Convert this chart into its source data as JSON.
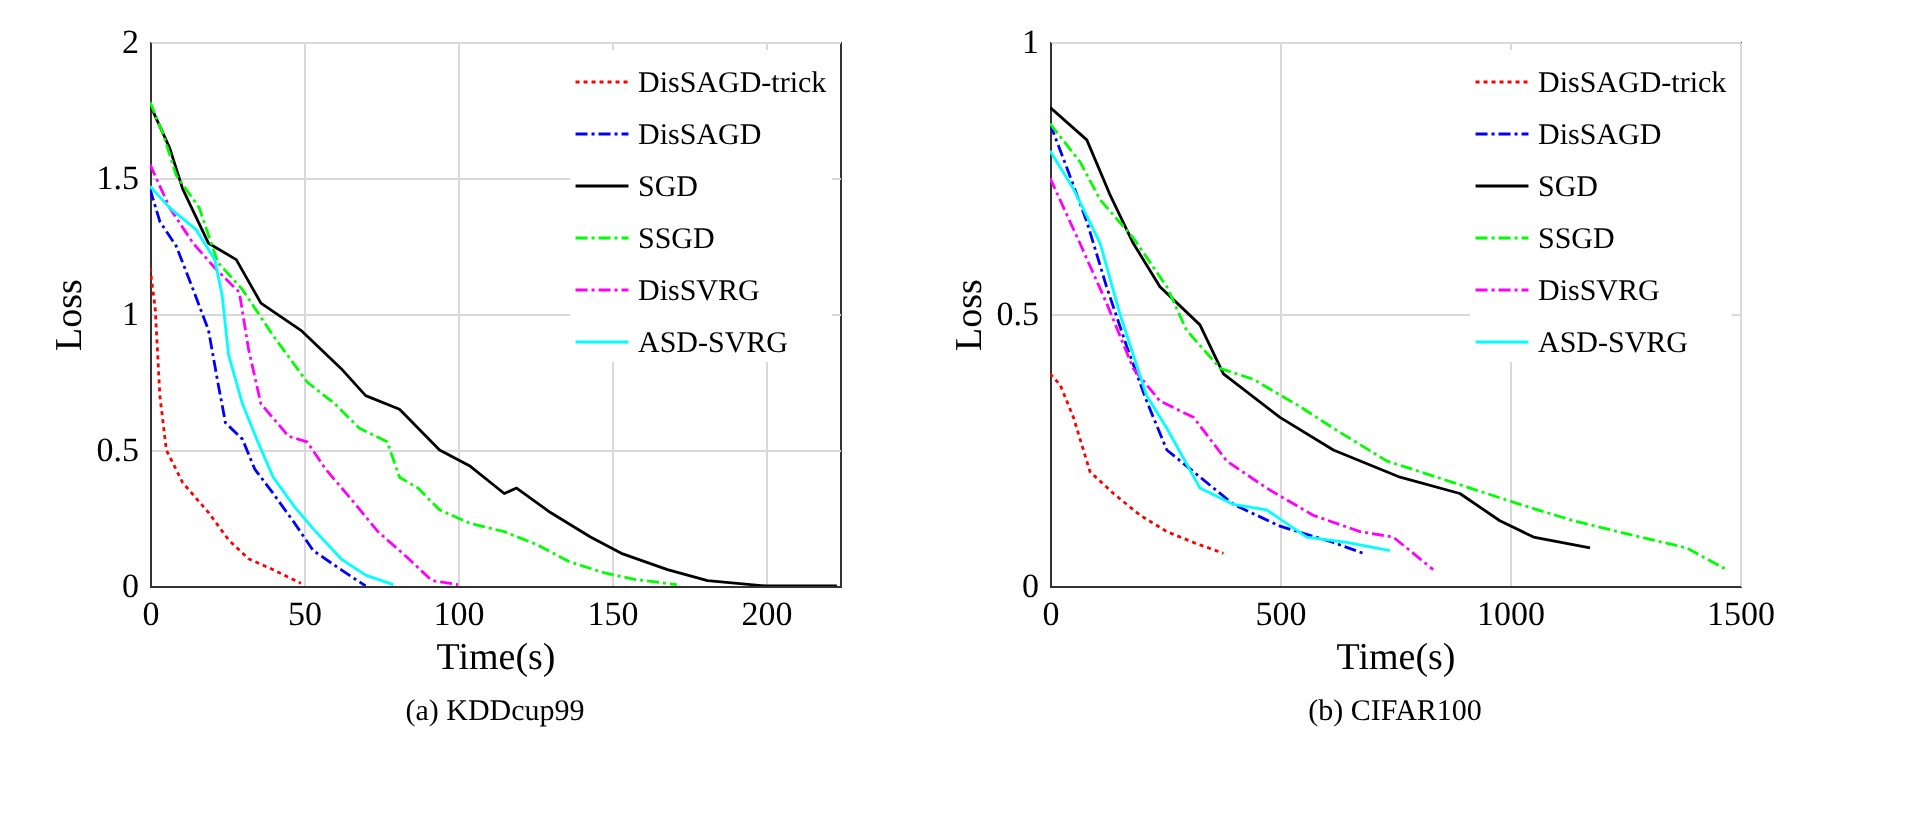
{
  "chart_data": [
    {
      "type": "line",
      "title": "(a) KDDcup99",
      "xlabel": "Time(s)",
      "ylabel": "Loss",
      "xlim": [
        0,
        224
      ],
      "xticks": [
        0,
        50,
        100,
        150,
        200
      ],
      "ylim": [
        0,
        2
      ],
      "yticks": [
        0,
        0.5,
        1,
        1.5,
        2
      ],
      "grid": true,
      "legend": "top right",
      "series": [
        {
          "name": "DisSAGD-trick",
          "color": "#ff0000",
          "line_style": "dotted",
          "x": [
            0,
            1.7,
            3.2,
            5.3,
            10.6,
            19,
            25.5,
            32,
            40,
            49
          ],
          "values": [
            1.17,
            1.02,
            0.7,
            0.5,
            0.38,
            0.27,
            0.17,
            0.1,
            0.06,
            0.01
          ]
        },
        {
          "name": "DisSAGD",
          "color": "#0000ff",
          "line_style": "dashed",
          "x": [
            0,
            3.2,
            8.5,
            14,
            19,
            22,
            24.5,
            30,
            34,
            40,
            47,
            53,
            62,
            70
          ],
          "values": [
            1.46,
            1.34,
            1.25,
            1.09,
            0.94,
            0.75,
            0.6,
            0.54,
            0.43,
            0.34,
            0.23,
            0.13,
            0.06,
            0
          ]
        },
        {
          "name": "SGD",
          "color": "#000000",
          "line_style": "solid",
          "x": [
            0,
            6.4,
            10.6,
            19,
            28,
            36,
            49,
            62,
            70,
            81,
            94,
            104,
            115,
            119,
            130,
            143,
            153,
            168,
            181,
            200,
            223
          ],
          "values": [
            1.77,
            1.61,
            1.46,
            1.26,
            1.2,
            1.04,
            0.94,
            0.8,
            0.7,
            0.65,
            0.5,
            0.44,
            0.34,
            0.36,
            0.27,
            0.18,
            0.12,
            0.06,
            0.02,
            0,
            0
          ]
        },
        {
          "name": "SSGD",
          "color": "#00ff00",
          "line_style": "dashed",
          "x": [
            0,
            4.3,
            8.5,
            16,
            22,
            30,
            40,
            51,
            60,
            68,
            77,
            81,
            87,
            94,
            104,
            115,
            126,
            136,
            147,
            157,
            171
          ],
          "values": [
            1.78,
            1.66,
            1.51,
            1.39,
            1.19,
            1.09,
            0.92,
            0.75,
            0.67,
            0.58,
            0.53,
            0.4,
            0.36,
            0.28,
            0.23,
            0.2,
            0.15,
            0.09,
            0.05,
            0.025,
            0.005
          ]
        },
        {
          "name": "DisSVRG",
          "color": "#ff00ff",
          "line_style": "dashed",
          "x": [
            0,
            6.4,
            14,
            21,
            29,
            32,
            36,
            45,
            51,
            57,
            66,
            74,
            83,
            91.5,
            100
          ],
          "values": [
            1.55,
            1.39,
            1.26,
            1.17,
            1.08,
            0.87,
            0.67,
            0.55,
            0.53,
            0.43,
            0.31,
            0.2,
            0.11,
            0.02,
            0.005
          ]
        },
        {
          "name": "ASD-SVRG",
          "color": "#00ffff",
          "line_style": "solid",
          "x": [
            0,
            6.4,
            15,
            21,
            23.4,
            25.5,
            30,
            35,
            40,
            47,
            53,
            62,
            70,
            79
          ],
          "values": [
            1.47,
            1.39,
            1.31,
            1.2,
            1.07,
            0.85,
            0.67,
            0.53,
            0.4,
            0.29,
            0.21,
            0.1,
            0.04,
            0.005
          ]
        }
      ]
    },
    {
      "type": "line",
      "title": "(b) CIFAR100",
      "xlabel": "Time(s)",
      "ylabel": "Loss",
      "xlim": [
        0,
        1500
      ],
      "xticks": [
        0,
        500,
        1000,
        1500
      ],
      "ylim": [
        0,
        1
      ],
      "yticks": [
        0,
        0.5,
        1
      ],
      "grid": true,
      "legend": "top right",
      "series": [
        {
          "name": "DisSAGD-trick",
          "color": "#ff0000",
          "line_style": "dotted",
          "x": [
            0,
            22,
            51,
            87,
            138,
            196,
            254,
            312,
            377
          ],
          "values": [
            0.39,
            0.37,
            0.31,
            0.21,
            0.17,
            0.13,
            0.1,
            0.08,
            0.06
          ]
        },
        {
          "name": "DisSAGD",
          "color": "#0000ff",
          "line_style": "dashed",
          "x": [
            0,
            36,
            80,
            123,
            167,
            210,
            254,
            312,
            399,
            500,
            616,
            681
          ],
          "values": [
            0.85,
            0.77,
            0.67,
            0.55,
            0.44,
            0.34,
            0.25,
            0.21,
            0.15,
            0.11,
            0.08,
            0.06
          ]
        },
        {
          "name": "SGD",
          "color": "#000000",
          "line_style": "solid",
          "x": [
            0,
            80,
            130,
            181,
            239,
            326,
            377,
            500,
            616,
            761,
            891,
            978,
            1051,
            1174
          ],
          "values": [
            0.88,
            0.82,
            0.72,
            0.63,
            0.55,
            0.48,
            0.39,
            0.31,
            0.25,
            0.2,
            0.17,
            0.12,
            0.09,
            0.07
          ]
        },
        {
          "name": "SSGD",
          "color": "#00ff00",
          "line_style": "dashed",
          "x": [
            0,
            65,
            109,
            181,
            254,
            297,
            370,
            442,
            543,
            616,
            732,
            877,
            1022,
            1138,
            1283,
            1384,
            1471
          ],
          "values": [
            0.85,
            0.78,
            0.71,
            0.64,
            0.55,
            0.47,
            0.4,
            0.38,
            0.33,
            0.29,
            0.23,
            0.19,
            0.15,
            0.12,
            0.09,
            0.07,
            0.03
          ]
        },
        {
          "name": "DisSVRG",
          "color": "#ff00ff",
          "line_style": "dashed",
          "x": [
            0,
            65,
            123,
            181,
            239,
            312,
            384,
            471,
            572,
            674,
            746,
            790,
            833
          ],
          "values": [
            0.75,
            0.63,
            0.52,
            0.4,
            0.34,
            0.31,
            0.23,
            0.18,
            0.13,
            0.1,
            0.09,
            0.06,
            0.03
          ]
        },
        {
          "name": "ASD-SVRG",
          "color": "#00ffff",
          "line_style": "solid",
          "x": [
            0,
            51,
            109,
            152,
            210,
            254,
            326,
            399,
            471,
            558,
            645,
            739
          ],
          "values": [
            0.8,
            0.73,
            0.63,
            0.5,
            0.35,
            0.29,
            0.18,
            0.15,
            0.14,
            0.09,
            0.08,
            0.065
          ]
        }
      ]
    }
  ]
}
